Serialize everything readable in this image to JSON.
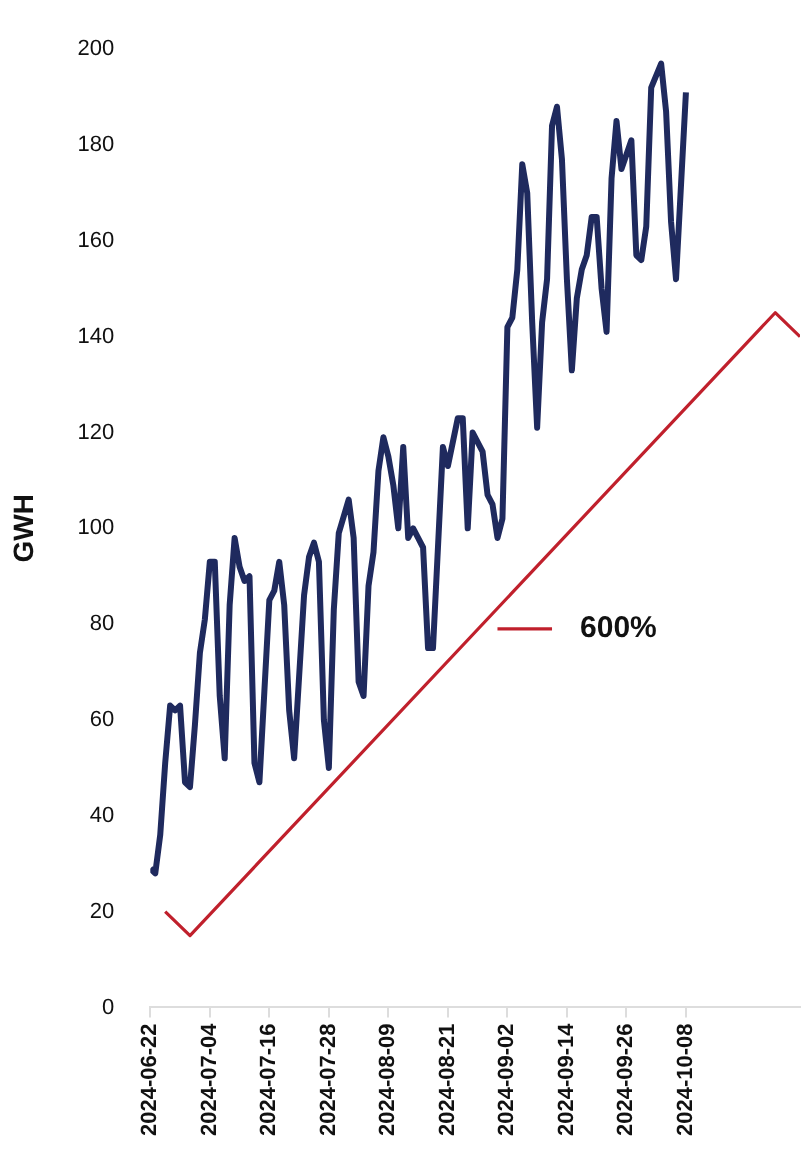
{
  "chart_data": {
    "type": "line",
    "ylabel": "GWH",
    "x": [
      "2024-06-22",
      "2024-06-23",
      "2024-06-24",
      "2024-06-25",
      "2024-06-26",
      "2024-06-27",
      "2024-06-28",
      "2024-06-29",
      "2024-06-30",
      "2024-07-01",
      "2024-07-02",
      "2024-07-03",
      "2024-07-04",
      "2024-07-05",
      "2024-07-06",
      "2024-07-07",
      "2024-07-08",
      "2024-07-09",
      "2024-07-10",
      "2024-07-11",
      "2024-07-12",
      "2024-07-13",
      "2024-07-14",
      "2024-07-15",
      "2024-07-16",
      "2024-07-17",
      "2024-07-18",
      "2024-07-19",
      "2024-07-20",
      "2024-07-21",
      "2024-07-23",
      "2024-07-24",
      "2024-07-25",
      "2024-07-26",
      "2024-07-27",
      "2024-07-28",
      "2024-07-29",
      "2024-07-30",
      "2024-08-01",
      "2024-08-02",
      "2024-08-03",
      "2024-08-04",
      "2024-08-05",
      "2024-08-06",
      "2024-08-07",
      "2024-08-08",
      "2024-08-09",
      "2024-08-10",
      "2024-08-11",
      "2024-08-12",
      "2024-08-13",
      "2024-08-14",
      "2024-08-15",
      "2024-08-16",
      "2024-08-17",
      "2024-08-18",
      "2024-08-20",
      "2024-08-21",
      "2024-08-23",
      "2024-08-24",
      "2024-08-25",
      "2024-08-26",
      "2024-08-28",
      "2024-08-29",
      "2024-08-30",
      "2024-08-31",
      "2024-09-01",
      "2024-09-02",
      "2024-09-03",
      "2024-09-04",
      "2024-09-05",
      "2024-09-06",
      "2024-09-07",
      "2024-09-08",
      "2024-09-09",
      "2024-09-10",
      "2024-09-11",
      "2024-09-12",
      "2024-09-13",
      "2024-09-14",
      "2024-09-15",
      "2024-09-16",
      "2024-09-17",
      "2024-09-18",
      "2024-09-19",
      "2024-09-20",
      "2024-09-21",
      "2024-09-22",
      "2024-09-23",
      "2024-09-24",
      "2024-09-25",
      "2024-09-27",
      "2024-09-28",
      "2024-09-29",
      "2024-09-30",
      "2024-10-01",
      "2024-10-03",
      "2024-10-04",
      "2024-10-05",
      "2024-10-06",
      "2024-10-08"
    ],
    "series": [
      {
        "color": "#1f2a5e",
        "values": [
          29,
          28,
          36,
          51,
          63,
          62,
          63,
          47,
          46,
          59,
          74,
          81,
          93,
          93,
          65,
          52,
          84,
          98,
          92,
          89,
          90,
          51,
          47,
          66,
          85,
          87,
          93,
          84,
          62,
          52,
          86,
          94,
          97,
          93,
          60,
          50,
          83,
          99,
          106,
          98,
          68,
          65,
          88,
          95,
          112,
          119,
          115,
          109,
          100,
          117,
          98,
          100,
          98,
          96,
          75,
          75,
          117,
          113,
          123,
          123,
          100,
          120,
          116,
          107,
          105,
          98,
          102,
          142,
          144,
          154,
          176,
          170,
          143,
          121,
          143,
          152,
          184,
          188,
          177,
          152,
          133,
          148,
          154,
          157,
          165,
          165,
          150,
          141,
          173,
          185,
          175,
          181,
          157,
          156,
          163,
          192,
          197,
          187,
          164,
          152,
          191
        ]
      },
      {
        "type": "line",
        "color": "#c0202c",
        "x": [
          "2024-06-25",
          "2024-06-30",
          "2024-10-26",
          "2024-10-31"
        ],
        "values": [
          20,
          15,
          145,
          140
        ]
      },
      {
        "type": "line",
        "color": "#c0202c",
        "x": [
          "2024-08-31",
          "2024-09-11"
        ],
        "values": [
          79,
          79
        ]
      }
    ],
    "xlim": [
      "2024-06-22",
      "2024-10-31"
    ],
    "xticks": [
      "2024-06-22",
      "2024-07-04",
      "2024-07-16",
      "2024-07-28",
      "2024-08-09",
      "2024-08-21",
      "2024-09-02",
      "2024-09-14",
      "2024-09-26",
      "2024-10-08"
    ],
    "ylim": [
      0,
      200
    ],
    "yticks": [
      0,
      20,
      40,
      60,
      80,
      100,
      120,
      140,
      160,
      180,
      200
    ],
    "grid": false,
    "legend": false,
    "marker": "none",
    "line_style": "solid",
    "annotations": [
      "600%"
    ]
  }
}
